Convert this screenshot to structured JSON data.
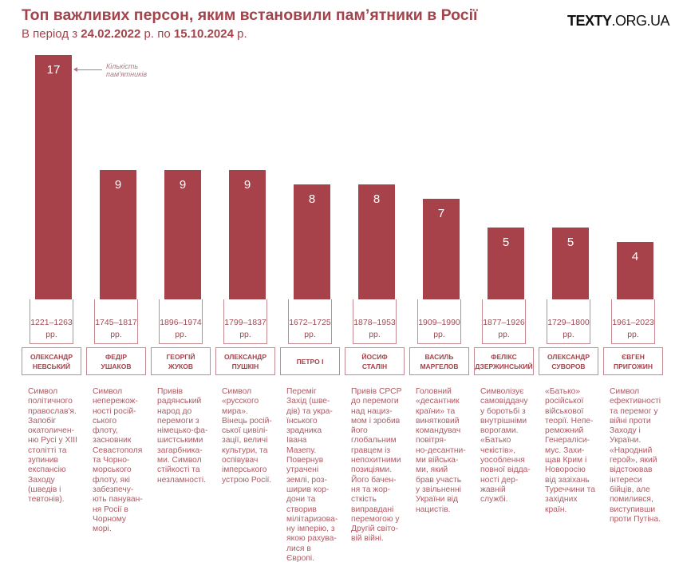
{
  "header": {
    "title": "Топ важливих персон, яким встановили пам’ятники в Росії",
    "subtitle_prefix": "В період з ",
    "date_from": "24.02.2022",
    "mid": " р. по ",
    "date_to": "15.10.2024",
    "suffix": " р.",
    "logo_bold": "TEXTY",
    "logo_rest": ".ORG.UA"
  },
  "annotation": "Кількість\nпам'ятників",
  "colors": {
    "bar": "#a8424a",
    "text": "#a4434b"
  },
  "chart_data": {
    "type": "bar",
    "title": "Топ важливих персон, яким встановили пам’ятники в Росії",
    "ylabel": "Кількість пам'ятників",
    "ylim": [
      0,
      17
    ],
    "categories": [
      "ОЛЕКСАНДР НЕВСЬКИЙ",
      "ФЕДІР УШАКОВ",
      "ГЕОРГІЙ ЖУКОВ",
      "ОЛЕКСАНДР ПУШКІН",
      "ПЕТРО І",
      "ЙОСИФ СТАЛІН",
      "ВАСИЛЬ МАРГЕЛОВ",
      "ФЕЛІКС ДЗЕРЖИНСЬКИЙ",
      "ОЛЕКСАНДР СУВОРОВ",
      "ЄВГЕН ПРИГОЖИН"
    ],
    "values": [
      17,
      9,
      9,
      9,
      8,
      8,
      7,
      5,
      5,
      4
    ]
  },
  "people": [
    {
      "name": "ОЛЕКСАНДР\nНЕВСЬКИЙ",
      "value": "17",
      "years": "1221–1263",
      "rr": "рр.",
      "desc": "Символ\nполітичного\nправослав'я.\nЗапобіг\nокатоличен-\nню Русі у XIII\nстолітті та\nзупинив\nекспансію\nЗаходу\n(шведів і\nтевтонів)."
    },
    {
      "name": "ФЕДІР\nУШАКОВ",
      "value": "9",
      "years": "1745–1817",
      "rr": "рр.",
      "desc": "Символ\nнепережож-\nності росій-\nського\nфлоту,\nзасновник\nСевастополя\nта Чорно-\nморського\nфлоту, які\nзабезпечу-\nють пануван-\nня Росії в\nЧорному\nморі."
    },
    {
      "name": "ГЕОРГІЙ\nЖУКОВ",
      "value": "9",
      "years": "1896–1974",
      "rr": "рр.",
      "desc": "Привів\nрадянський\nнарод до\nперемоги з\nнімецько-фа-\nшистськими\nзагарбника-\nми. Символ\nстійкості та\nнезламності."
    },
    {
      "name": "ОЛЕКСАНДР\nПУШКІН",
      "value": "9",
      "years": "1799–1837",
      "rr": "рр.",
      "desc": "Символ\n«русского\nмира».\nВінець росій-\nської цивілі-\nзації, величі\nкультури, та\nоспівувач\nімперського\nустрою Росії."
    },
    {
      "name": "ПЕТРО І",
      "value": "8",
      "years": "1672–1725",
      "rr": "рр.",
      "desc": "Переміг\nЗахід (шве-\nдів) та укра-\nїнського\nзрадника\nІвана\nМазепу.\nПовернув\nутрачені\nземлі, роз-\nширив кор-\nдони та\nстворив\nмілітаризова-\nну імперію, з\nякою рахува-\nлися в\nЄвропі."
    },
    {
      "name": "ЙОСИФ\nСТАЛІН",
      "value": "8",
      "years": "1878–1953",
      "rr": "рр.",
      "desc": "Привів СРСР\nдо перемоги\nнад нациз-\nмом і зробив\nйого\nглобальним\nгравцем із\nнепохитними\nпозиціями.\nЙого бачен-\nня та жор-\nсткість\nвиправдані\nперемогою у\nДругій світо-\nвій війні."
    },
    {
      "name": "ВАСИЛЬ\nМАРГЕЛОВ",
      "value": "7",
      "years": "1909–1990",
      "rr": "рр.",
      "desc": "Головний\n«десантник\nкраїни» та\nвинятковий\nкомандувач\nповітря-\nно-десантни-\nми військa-\nми, який\nбрав участь\nу звільненні\nУкраїни від\nнацистів."
    },
    {
      "name": "ФЕЛІКС\nДЗЕРЖИНСЬКИЙ",
      "value": "5",
      "years": "1877–1926",
      "rr": "рр.",
      "desc": "Символізує\nсамовіддачу\nу боротьбі з\nвнутрішніми\nворогами.\n«Батько\nчекістів»,\nуособлення\nповної відда-\nності дер-\nжавній\nслужбі."
    },
    {
      "name": "ОЛЕКСАНДР\nСУВОРОВ",
      "value": "5",
      "years": "1729–1800",
      "rr": "рр.",
      "desc": "«Батько»\nросійської\nвійськової\nтеорії. Непе-\nреможний\nГенераліси-\nмус. Захи-\nщав Крим і\nНоворосію\nвід зазіхань\nТуреччини та\nзахідних\nкраїн."
    },
    {
      "name": "ЄВГЕН\nПРИГОЖИН",
      "value": "4",
      "years": "1961–2023",
      "rr": "рр.",
      "desc": "Символ\nефективності\nта перемог у\nвійні проти\nЗаходу і\nУкраїни.\n«Народний\nгерой», який\nвідстоював\nінтереси\nбійців, але\nпомилився,\nвиступивши\nпроти Путіна."
    }
  ]
}
